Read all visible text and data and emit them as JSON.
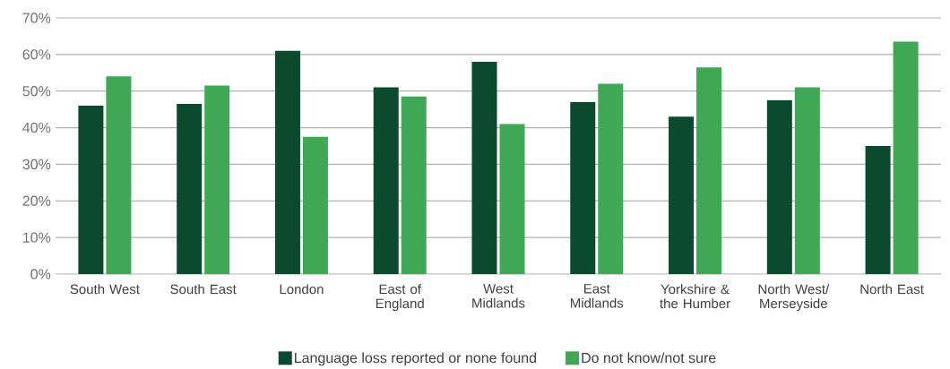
{
  "chart_data": {
    "type": "bar",
    "categories": [
      "South West",
      "South East",
      "London",
      "East of England",
      "West Midlands",
      "East Midlands",
      "Yorkshire & the Humber",
      "North West/ Merseyside",
      "North East"
    ],
    "series": [
      {
        "name": "Language loss reported or none found",
        "color": "#0b4a2f",
        "values": [
          46,
          46.5,
          61,
          51,
          58,
          47,
          43,
          47.5,
          35
        ]
      },
      {
        "name": "Do not know/not sure",
        "color": "#3fa854",
        "values": [
          54,
          51.5,
          37.5,
          48.5,
          41,
          52,
          56.5,
          51,
          63.5
        ]
      }
    ],
    "ylim": [
      0,
      70
    ],
    "yticks": [
      {
        "value": 0,
        "label": "0%"
      },
      {
        "value": 10,
        "label": "10%"
      },
      {
        "value": 20,
        "label": "20%"
      },
      {
        "value": 30,
        "label": "30%"
      },
      {
        "value": 40,
        "label": "40%"
      },
      {
        "value": 50,
        "label": "50%"
      },
      {
        "value": 60,
        "label": "60%"
      },
      {
        "value": 70,
        "label": "70%"
      }
    ],
    "grid": "y",
    "legend": "bottom"
  }
}
